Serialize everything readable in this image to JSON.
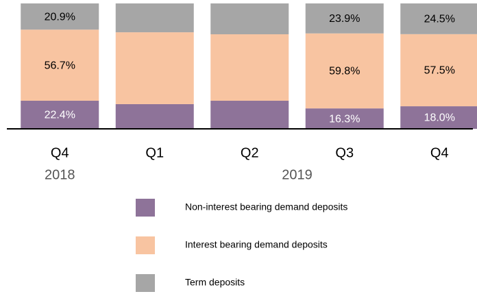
{
  "chart_data": {
    "type": "stacked_bar",
    "categories": [
      "Q4",
      "Q1",
      "Q2",
      "Q3",
      "Q4"
    ],
    "groups": [
      {
        "name": "2018",
        "count": 1
      },
      {
        "name": "2019",
        "count": 4
      }
    ],
    "ylim": [
      0,
      100
    ],
    "series": [
      {
        "name": "Non-interest bearing demand deposits",
        "color": "#8e7399",
        "values": [
          22.4,
          19.7,
          22.4,
          16.3,
          18.0
        ],
        "value_labels": [
          "22.4%",
          null,
          null,
          "16.3%",
          "18.0%"
        ]
      },
      {
        "name": "Interest bearing demand deposits",
        "color": "#f8c4a1",
        "values": [
          56.7,
          57.3,
          53.0,
          59.8,
          57.5
        ],
        "value_labels": [
          "56.7%",
          null,
          null,
          "59.8%",
          "57.5%"
        ]
      },
      {
        "name": "Term deposits",
        "color": "#a6a6a6",
        "values": [
          20.9,
          23.0,
          24.6,
          23.9,
          24.5
        ],
        "value_labels": [
          "20.9%",
          null,
          null,
          "23.9%",
          "24.5%"
        ]
      }
    ]
  }
}
